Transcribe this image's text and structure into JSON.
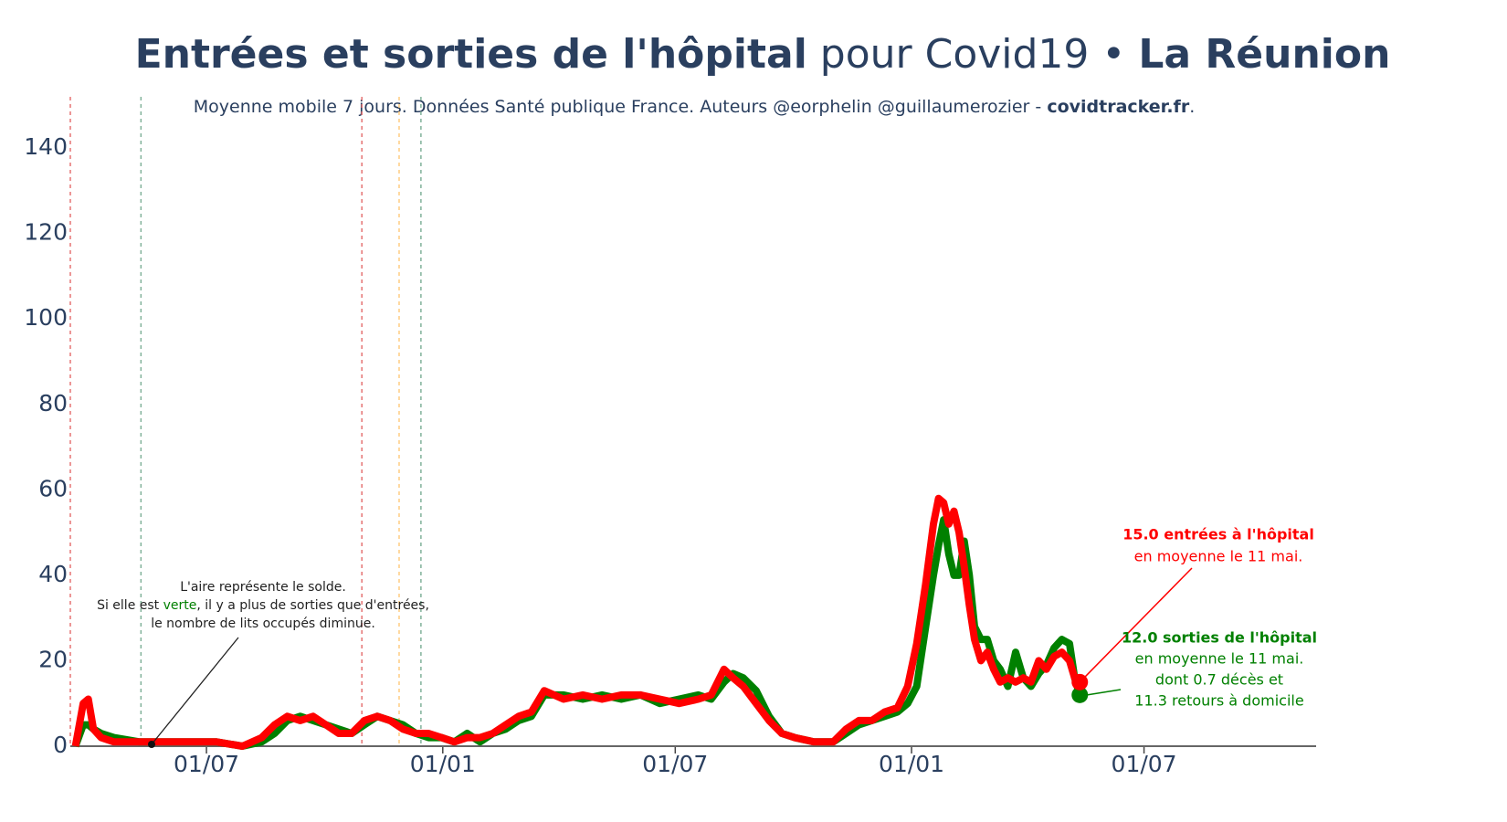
{
  "chart_data": {
    "type": "line",
    "title": {
      "part1": "Entrées et sorties de l'hôpital",
      "part2": " pour Covid19 • ",
      "part3": "La Réunion"
    },
    "subtitle": {
      "text": "Moyenne mobile 7 jours. Données Santé publique France. Auteurs @eorphelin @guillaumerozier - ",
      "link": "covidtracker.fr",
      "end": "."
    },
    "x": [
      80,
      86,
      90,
      94,
      100,
      110,
      130,
      150,
      170,
      190,
      210,
      225,
      235,
      245,
      255,
      265,
      275,
      285,
      295,
      305,
      315,
      325,
      335,
      345,
      355,
      365,
      375,
      385,
      395,
      405,
      415,
      425,
      435,
      445,
      460,
      475,
      490,
      505,
      520,
      535,
      550,
      565,
      575,
      585,
      592,
      600,
      610,
      620,
      630,
      640,
      655,
      670,
      680,
      690,
      700,
      710,
      720,
      728,
      735,
      742,
      748,
      752,
      756,
      760,
      764,
      768,
      772,
      776,
      780,
      785,
      790,
      795,
      800,
      806,
      812,
      818,
      824,
      830,
      836,
      842,
      848,
      854,
      858,
      862
    ],
    "series": [
      {
        "name": "sorties",
        "color": "#008000",
        "values": [
          0,
          5,
          5,
          4,
          3,
          2,
          1,
          1,
          1,
          1,
          0,
          1,
          3,
          6,
          7,
          6,
          5,
          4,
          3,
          5,
          7,
          6,
          5,
          3,
          2,
          2,
          1,
          3,
          1,
          3,
          4,
          6,
          7,
          12,
          12,
          11,
          12,
          11,
          12,
          10,
          11,
          12,
          11,
          15,
          17,
          16,
          13,
          7,
          3,
          2,
          1,
          1,
          3,
          5,
          6,
          7,
          8,
          10,
          14,
          28,
          40,
          47,
          53,
          45,
          40,
          40,
          48,
          40,
          28,
          25,
          25,
          20,
          18,
          14,
          22,
          16,
          14,
          17,
          19,
          23,
          25,
          24,
          16,
          12
        ]
      },
      {
        "name": "entrées",
        "color": "#ff0000",
        "values": [
          0,
          10,
          11,
          4,
          2,
          1,
          1,
          1,
          1,
          1,
          0,
          2,
          5,
          7,
          6,
          7,
          5,
          3,
          3,
          6,
          7,
          6,
          4,
          3,
          3,
          2,
          1,
          2,
          2,
          3,
          5,
          7,
          8,
          13,
          11,
          12,
          11,
          12,
          12,
          11,
          10,
          11,
          12,
          18,
          16,
          14,
          10,
          6,
          3,
          2,
          1,
          1,
          4,
          6,
          6,
          8,
          9,
          14,
          24,
          38,
          52,
          58,
          57,
          52,
          55,
          50,
          42,
          33,
          25,
          20,
          22,
          18,
          15,
          16,
          15,
          16,
          15,
          20,
          18,
          21,
          22,
          20,
          16,
          15
        ]
      }
    ],
    "xlim": [
      76,
      1046
    ],
    "xticks": [
      {
        "value": 182,
        "label": "01/07"
      },
      {
        "value": 366,
        "label": "01/01"
      },
      {
        "value": 547,
        "label": "01/07"
      },
      {
        "value": 731,
        "label": "01/01"
      },
      {
        "value": 912,
        "label": "01/07"
      }
    ],
    "ylim": [
      0,
      152
    ],
    "yticks": [
      0,
      20,
      40,
      60,
      80,
      100,
      120,
      140
    ],
    "vertical_lines": [
      {
        "x": 76,
        "color": "#e57373"
      },
      {
        "x": 131,
        "color": "#81b29a"
      },
      {
        "x": 303,
        "color": "#e57373"
      },
      {
        "x": 332,
        "color": "#ffcc80"
      },
      {
        "x": 349,
        "color": "#81b29a"
      }
    ],
    "annotations": {
      "entrees": [
        "15.0 entrées à l'hôpital",
        "en moyenne le 11 mai."
      ],
      "sorties": [
        "12.0 sorties de l'hôpital",
        "en moyenne le 11 mai.",
        "dont 0.7 décès et",
        "11.3 retours à domicile"
      ],
      "aire": {
        "line1": "L'aire représente le solde.",
        "line2a": "Si elle est ",
        "line2b": "verte",
        "line2c": ", il y a plus de sorties que d'entrées,",
        "line3": "le nombre de lits occupés diminue."
      }
    }
  }
}
